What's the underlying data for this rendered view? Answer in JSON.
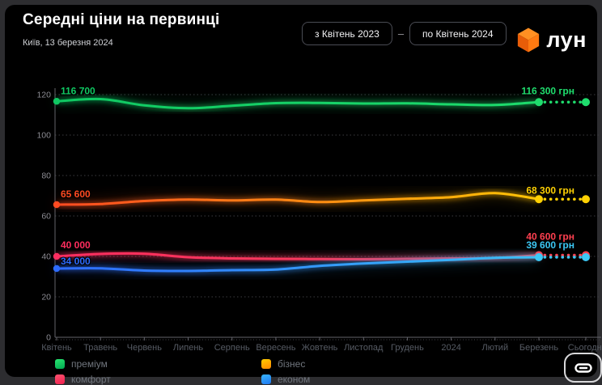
{
  "header": {
    "title": "Середні ціни на первинці",
    "subtitle": "Київ, 13 березня 2024"
  },
  "date_range": {
    "from_label": "з Квітень 2023",
    "separator": "–",
    "to_label": "по Квітень 2024"
  },
  "logo": {
    "text": "лун",
    "cube_color": "#ff7a11"
  },
  "chart_data": {
    "type": "line",
    "title": "Середні ціни на первинці",
    "x_labels": [
      "Квітень",
      "Травень",
      "Червень",
      "Липень",
      "Серпень",
      "Вересень",
      "Жовтень",
      "Листопад",
      "Грудень",
      "2024",
      "Лютий",
      "Березень",
      "Сьогодні"
    ],
    "y_ticks": [
      0,
      20,
      40,
      60,
      80,
      100,
      120
    ],
    "ylim": [
      0,
      128
    ],
    "grid": "dotted",
    "legend_position": "bottom-left",
    "series": [
      {
        "name": "преміум",
        "color_start": "#0fc862",
        "color_end": "#1fdd6d",
        "values": [
          116700,
          117800,
          114700,
          113300,
          114500,
          115800,
          115900,
          115600,
          115700,
          115200,
          114900,
          116300,
          116300
        ],
        "start_label": "116 700",
        "end_label": "116 300 грн"
      },
      {
        "name": "бізнес",
        "color_start": "#ff4a21",
        "color_end": "#ffd103",
        "values": [
          65600,
          65900,
          67400,
          68100,
          67700,
          68100,
          66900,
          67700,
          68500,
          69300,
          71300,
          68300,
          68300
        ],
        "start_label": "65 600",
        "end_label": "68 300 грн"
      },
      {
        "name": "комфорт",
        "color_start": "#ff2d5e",
        "color_end": "#ff4050",
        "values": [
          40000,
          41200,
          41300,
          39600,
          39000,
          38800,
          38700,
          38600,
          38800,
          39000,
          39200,
          40600,
          40600
        ],
        "start_label": "40 000",
        "end_label": "40 600 грн"
      },
      {
        "name": "економ",
        "color_start": "#2d6bff",
        "color_end": "#3cc8f5",
        "values": [
          34000,
          34100,
          33000,
          32800,
          33200,
          33500,
          35300,
          36500,
          37400,
          38300,
          39300,
          39600,
          39600
        ],
        "start_label": "34 000",
        "end_label": "39 600 грн"
      }
    ]
  },
  "legend": {
    "items": [
      {
        "label": "преміум",
        "color_top": "#2ae571",
        "color_bottom": "#00a850"
      },
      {
        "label": "бізнес",
        "color_top": "#ffcc00",
        "color_bottom": "#ff8800"
      },
      {
        "label": "комфорт",
        "color_top": "#ff5470",
        "color_bottom": "#f01f4e"
      },
      {
        "label": "економ",
        "color_top": "#38b6ff",
        "color_bottom": "#1f78f0"
      }
    ]
  }
}
